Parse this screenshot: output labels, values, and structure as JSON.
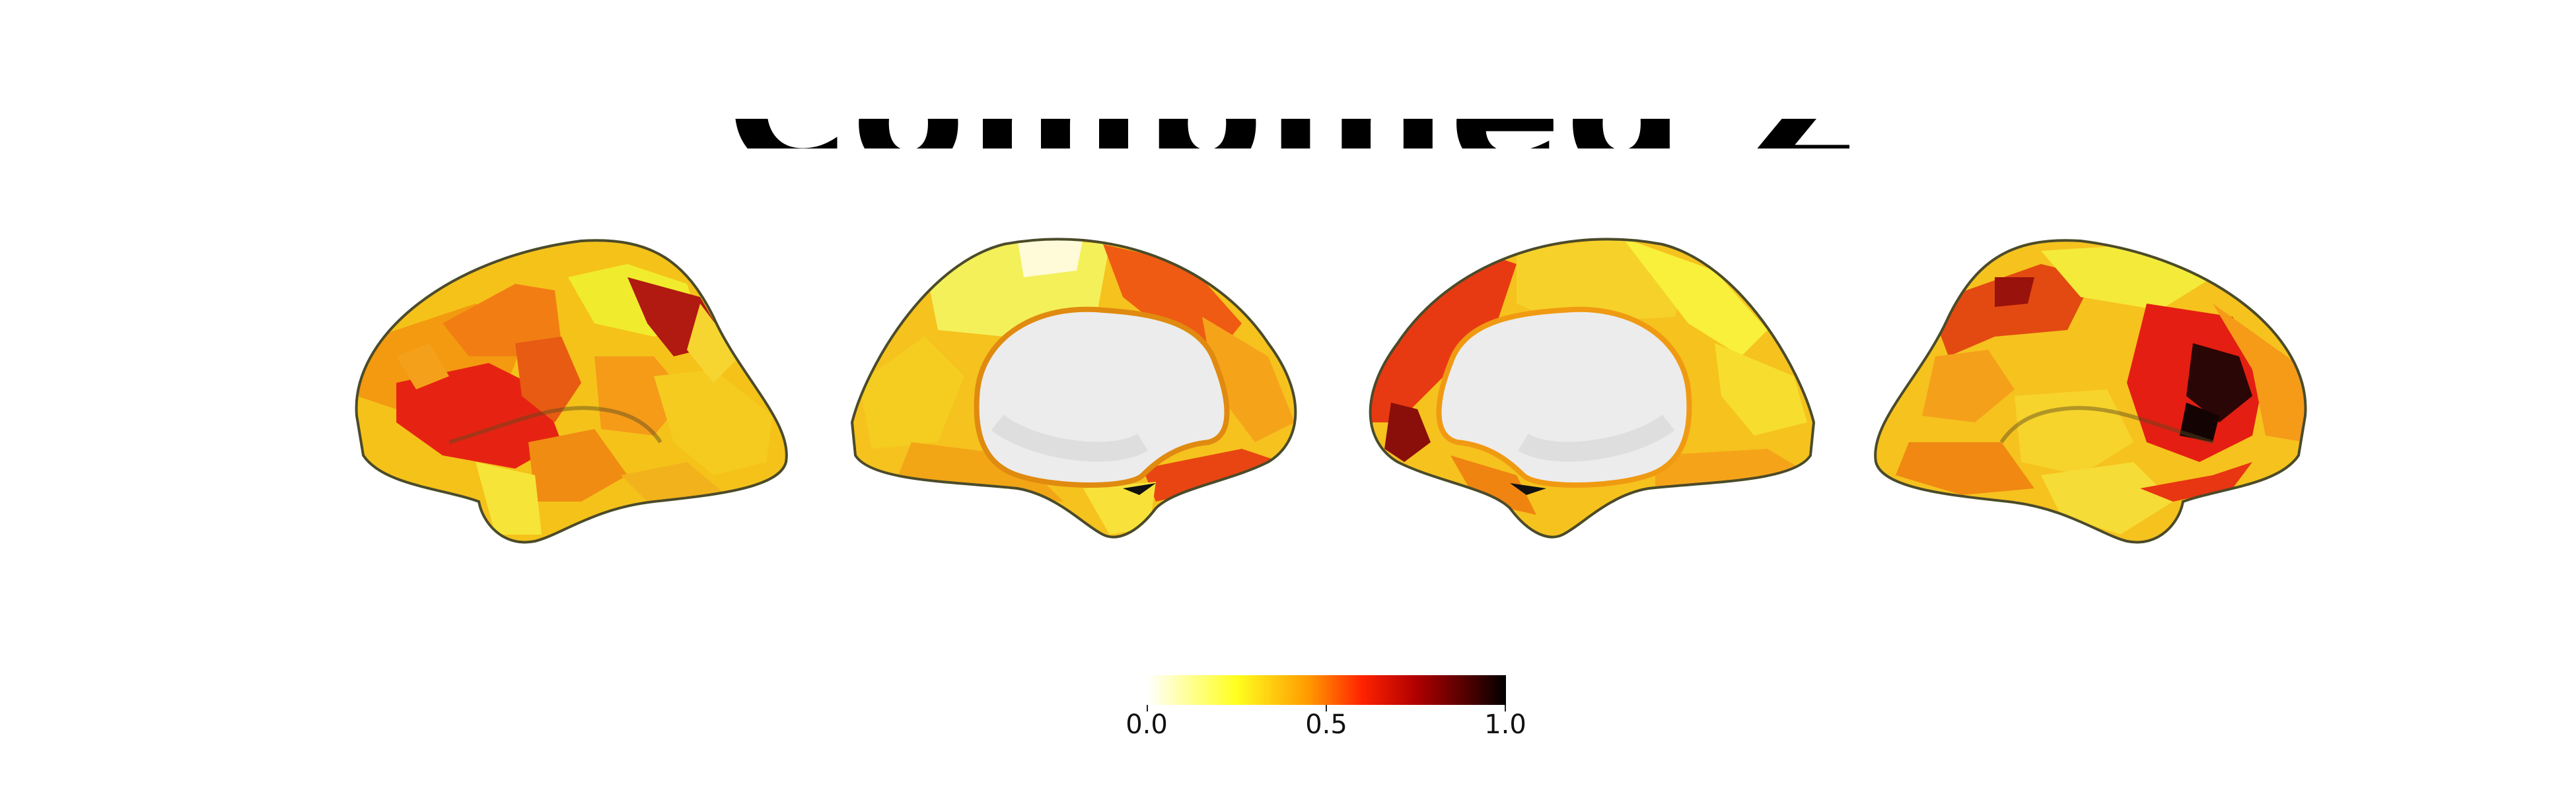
{
  "figure": {
    "title": "Combined Z-values",
    "colormap": "hot_r",
    "views": [
      {
        "hemisphere": "left",
        "view": "lateral"
      },
      {
        "hemisphere": "left",
        "view": "medial"
      },
      {
        "hemisphere": "right",
        "view": "medial"
      },
      {
        "hemisphere": "right",
        "view": "lateral"
      }
    ]
  },
  "colorbar": {
    "range": [
      0.0,
      1.0
    ],
    "ticks": [
      "0.0",
      "0.5",
      "1.0"
    ],
    "colors": [
      "#ffffff",
      "#ffff20",
      "#ff9a00",
      "#ff2200",
      "#b00000",
      "#4a0000",
      "#000000"
    ]
  }
}
